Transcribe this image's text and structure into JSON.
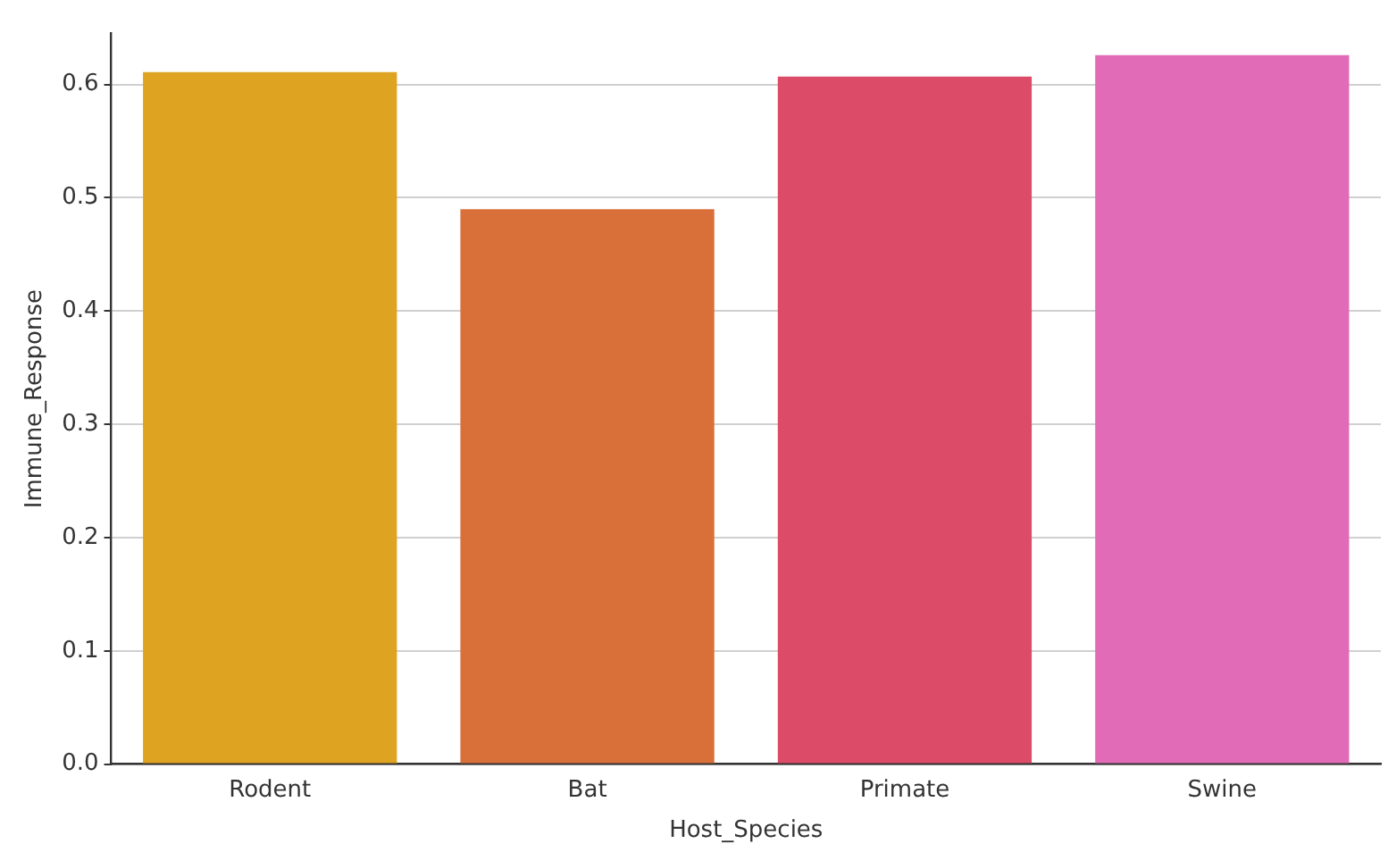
{
  "chart_data": {
    "type": "bar",
    "xlabel": "Host_Species",
    "ylabel": "Immune_Response",
    "categories": [
      "Rodent",
      "Bat",
      "Primate",
      "Swine"
    ],
    "values": [
      0.611,
      0.49,
      0.607,
      0.626
    ],
    "colors": [
      "#dea321",
      "#d9703a",
      "#dc4b67",
      "#e26bb8"
    ],
    "ylim": [
      0,
      0.645
    ],
    "yticks": [
      {
        "value": 0,
        "label": "0.0"
      },
      {
        "value": 0.1,
        "label": "0.1"
      },
      {
        "value": 0.2,
        "label": "0.2"
      },
      {
        "value": 0.3,
        "label": "0.3"
      },
      {
        "value": 0.4,
        "label": "0.4"
      },
      {
        "value": 0.5,
        "label": "0.5"
      },
      {
        "value": 0.6,
        "label": "0.6"
      }
    ],
    "grid": "y",
    "legend": false
  }
}
